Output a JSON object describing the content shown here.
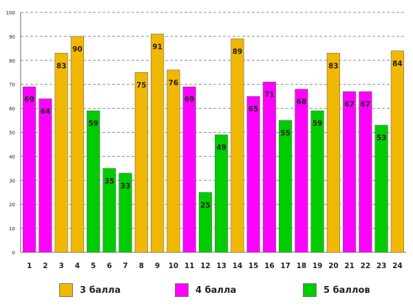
{
  "chart_data": {
    "type": "bar",
    "title": "",
    "xlabel": "",
    "ylabel": "",
    "ylim": [
      0,
      100
    ],
    "yticks": [
      0,
      10,
      20,
      30,
      40,
      50,
      60,
      70,
      80,
      90,
      100
    ],
    "grid": true,
    "categories": [
      "1",
      "2",
      "3",
      "4",
      "5",
      "6",
      "7",
      "8",
      "9",
      "10",
      "11",
      "12",
      "13",
      "14",
      "15",
      "16",
      "17",
      "18",
      "19",
      "20",
      "21",
      "22",
      "23",
      "24"
    ],
    "values": [
      69,
      64,
      83,
      90,
      59,
      35,
      33,
      75,
      91,
      76,
      69,
      25,
      49,
      89,
      65,
      71,
      55,
      68,
      59,
      83,
      67,
      67,
      53,
      84
    ],
    "groups": [
      "4 балла",
      "4 балла",
      "3 балла",
      "3 балла",
      "5 баллов",
      "5 баллов",
      "5 баллов",
      "3 балла",
      "3 балла",
      "3 балла",
      "4 балла",
      "5 баллов",
      "5 баллов",
      "3 балла",
      "4 балла",
      "4 балла",
      "5 баллов",
      "4 балла",
      "5 баллов",
      "3 балла",
      "4 балла",
      "4 балла",
      "5 баллов",
      "3 балла"
    ],
    "legend": [
      {
        "name": "3 балла",
        "color": "#f0b800"
      },
      {
        "name": "4 балла",
        "color": "#ff00ff"
      },
      {
        "name": "5 баллов",
        "color": "#00cc00"
      }
    ],
    "legend_position": "bottom"
  }
}
